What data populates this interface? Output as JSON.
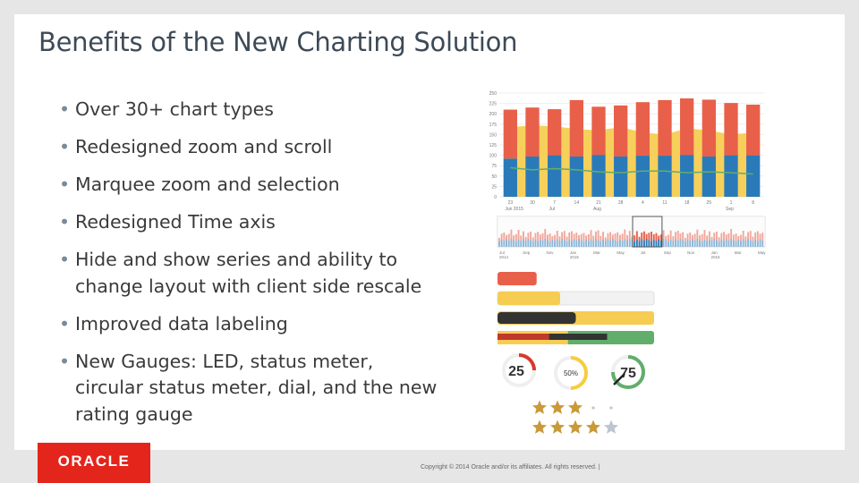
{
  "slide": {
    "title": "Benefits of the New Charting Solution",
    "bullets": [
      "Over 30+ chart types",
      "Redesigned zoom and scroll",
      "Marquee zoom and selection",
      "Redesigned Time axis",
      "Hide and show series and ability to change layout with client side rescale",
      "Improved data labeling",
      "New Gauges: LED, status meter, circular status meter, dial, and the new rating gauge"
    ],
    "logo_text": "ORACLE",
    "copyright": "Copyright © 2014 Oracle and/or its affiliates. All rights reserved.  |"
  },
  "chart_data": {
    "type": "bar",
    "yticks": [
      "250",
      "225",
      "200",
      "175",
      "150",
      "125",
      "100",
      "75",
      "50",
      "25",
      "0"
    ],
    "ylim": [
      0,
      250
    ],
    "x": [
      "23",
      "30",
      "7",
      "14",
      "21",
      "28",
      "4",
      "11",
      "18",
      "25",
      "1",
      "8"
    ],
    "x_months": [
      "Jun 2015",
      "Jul",
      "Aug",
      "Sep"
    ],
    "series": [
      {
        "values": [
          92,
          97,
          100,
          97,
          101,
          97,
          99,
          99,
          101,
          97,
          100,
          100
        ]
      },
      {
        "values": [
          118,
          118,
          111,
          136,
          116,
          123,
          129,
          134,
          136,
          137,
          126,
          122
        ]
      },
      {
        "values": [
          168,
          172,
          170,
          163,
          160,
          168,
          155,
          150,
          165,
          160,
          150,
          155
        ]
      },
      {
        "values": [
          70,
          65,
          68,
          65,
          60,
          58,
          62,
          62,
          58,
          60,
          58,
          55
        ]
      }
    ],
    "overview_axis": [
      "Jul 2014",
      "Sep",
      "Nov",
      "Jan 2015",
      "Mar",
      "May",
      "Jul",
      "Sep",
      "Nov",
      "Jan 2016",
      "Mar",
      "May"
    ],
    "overview_selection": [
      0.505,
      0.615
    ]
  },
  "gauges": {
    "status_meters": [
      {
        "fraction": 0.15,
        "color": "#e8604a",
        "track": false
      },
      {
        "fraction": 0.4,
        "color": "#f6cd52",
        "track": true
      },
      {
        "fraction": 0.5,
        "color": "#333333",
        "fill": "#f6cd52",
        "track": true
      },
      {
        "fraction": 0.7,
        "color": "#333333",
        "fill_start": 0.2,
        "track_color": "#61ae6c",
        "track": true
      }
    ],
    "circular": [
      {
        "label": "25",
        "fraction": 0.25,
        "color": "#d9392b"
      },
      {
        "label": "50%",
        "fraction": 0.5,
        "color": "#f6cd3c"
      },
      {
        "label": "75",
        "fraction": 0.75,
        "color": "#61ae6c"
      }
    ],
    "ratings": [
      {
        "stars": 3,
        "max": 5
      },
      {
        "stars": 4,
        "max": 5
      }
    ],
    "colors": {
      "red": "#e8604a",
      "yellow": "#f6cd52",
      "blue": "#2a7ab9",
      "green": "#61ae6c",
      "star": "#c99a3a",
      "star_empty": "#bcc6d1"
    }
  }
}
